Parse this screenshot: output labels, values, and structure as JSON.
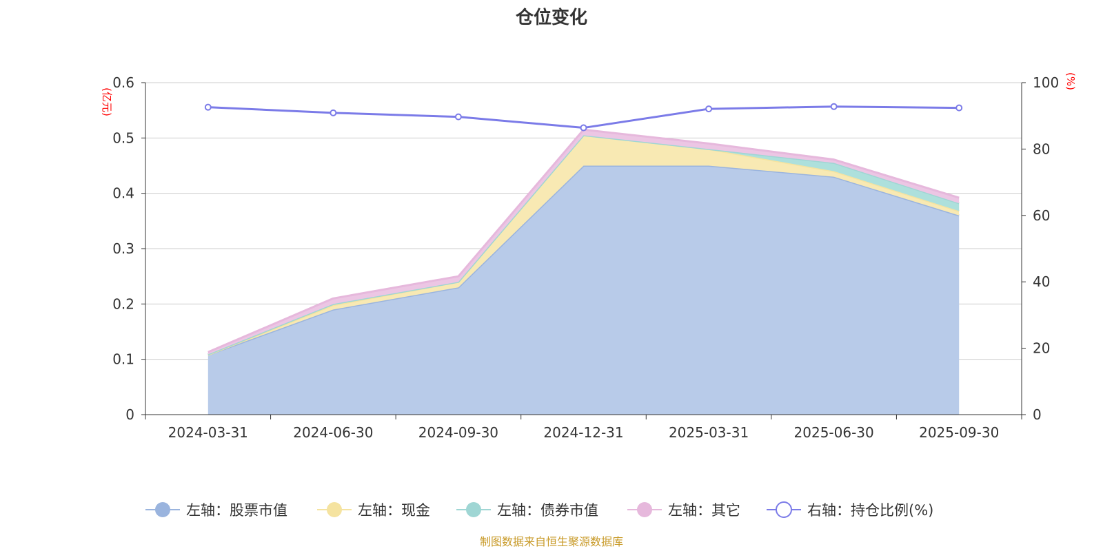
{
  "chart_data": {
    "type": "area",
    "title": "仓位变化",
    "left_unit": "(亿元)",
    "right_unit": "(%)",
    "categories": [
      "2024-03-31",
      "2024-06-30",
      "2024-09-30",
      "2024-12-31",
      "2025-03-31",
      "2025-06-30",
      "2025-09-30"
    ],
    "left_axis": {
      "min": 0,
      "max": 0.6,
      "ticks": [
        "0",
        "0.1",
        "0.2",
        "0.3",
        "0.4",
        "0.5",
        "0.6"
      ]
    },
    "right_axis": {
      "min": 0,
      "max": 100,
      "ticks": [
        "0",
        "20",
        "40",
        "60",
        "80",
        "100"
      ]
    },
    "grid": true,
    "stacked": true,
    "legend_position": "bottom",
    "series": [
      {
        "name": "左轴：股票市值",
        "axis": "left",
        "kind": "area",
        "color": "#9ab4de",
        "fill": "#b8cbe9",
        "values": [
          0.108,
          0.19,
          0.23,
          0.45,
          0.45,
          0.43,
          0.36
        ]
      },
      {
        "name": "左轴：现金",
        "axis": "left",
        "kind": "area",
        "color": "#f5e3a0",
        "fill": "#f8e9b3",
        "values": [
          0.0,
          0.008,
          0.01,
          0.055,
          0.03,
          0.01,
          0.008
        ]
      },
      {
        "name": "左轴：债券市值",
        "axis": "left",
        "kind": "area",
        "color": "#9fd6d4",
        "fill": "#ade0dc",
        "values": [
          0.001,
          0.002,
          0.0,
          0.0,
          0.0,
          0.015,
          0.014
        ]
      },
      {
        "name": "左轴：其它",
        "axis": "left",
        "kind": "area",
        "color": "#e6b8dc",
        "fill": "#ecc6e4",
        "values": [
          0.004,
          0.01,
          0.01,
          0.01,
          0.01,
          0.006,
          0.01
        ]
      },
      {
        "name": "右轴：持仓比例(%)",
        "axis": "right",
        "kind": "line",
        "color": "#7b7be8",
        "values": [
          92.6,
          90.9,
          89.7,
          86.4,
          92.1,
          92.8,
          92.4
        ]
      }
    ],
    "source": "制图数据来自恒生聚源数据库"
  }
}
